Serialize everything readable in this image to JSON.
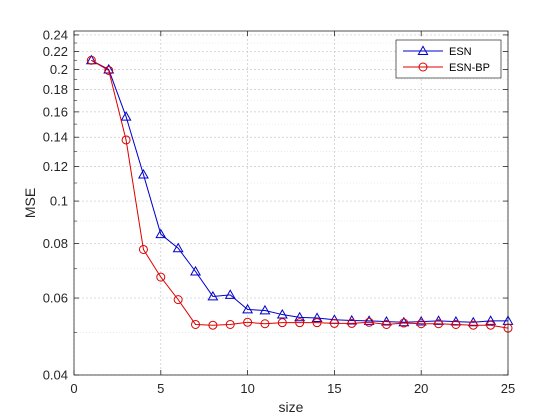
{
  "chart_data": {
    "type": "line",
    "xlabel": "size",
    "ylabel": "MSE",
    "xlim": [
      0,
      25
    ],
    "ylim": [
      0.04,
      0.245
    ],
    "y_scale": "log",
    "grid": true,
    "minor_grid": true,
    "legend_position": "top-right",
    "x_ticks": [
      0,
      5,
      10,
      15,
      20,
      25
    ],
    "y_ticks": [
      0.04,
      0.06,
      0.08,
      0.1,
      0.12,
      0.14,
      0.16,
      0.18,
      0.2,
      0.22,
      0.24
    ],
    "y_tick_labels": [
      "0.04",
      "0.06",
      "0.08",
      "0.1",
      "0.12",
      "0.14",
      "0.16",
      "0.18",
      "0.2",
      "0.22",
      "0.24"
    ],
    "y_minor_ticks": [
      0.05,
      0.07,
      0.09,
      0.11,
      0.13,
      0.15,
      0.17,
      0.19,
      0.21,
      0.23
    ],
    "x": [
      1,
      2,
      3,
      4,
      5,
      6,
      7,
      8,
      9,
      10,
      11,
      12,
      13,
      14,
      15,
      16,
      17,
      18,
      19,
      20,
      21,
      22,
      23,
      24,
      25
    ],
    "series": [
      {
        "name": "ESN",
        "color": "#0000cc",
        "marker": "triangle",
        "values": [
          0.21,
          0.2,
          0.156,
          0.115,
          0.084,
          0.078,
          0.069,
          0.0605,
          0.061,
          0.0565,
          0.0562,
          0.055,
          0.0542,
          0.054,
          0.0535,
          0.0533,
          0.0532,
          0.053,
          0.0528,
          0.053,
          0.0532,
          0.053,
          0.0528,
          0.0532,
          0.0532
        ]
      },
      {
        "name": "ESN-BP",
        "color": "#dd0000",
        "marker": "circle",
        "values": [
          0.21,
          0.199,
          0.138,
          0.0775,
          0.067,
          0.0595,
          0.0522,
          0.052,
          0.0522,
          0.0528,
          0.0524,
          0.0527,
          0.0527,
          0.0527,
          0.0525,
          0.0525,
          0.0528,
          0.0522,
          0.0526,
          0.0524,
          0.0524,
          0.0522,
          0.052,
          0.052,
          0.0512
        ]
      }
    ]
  }
}
